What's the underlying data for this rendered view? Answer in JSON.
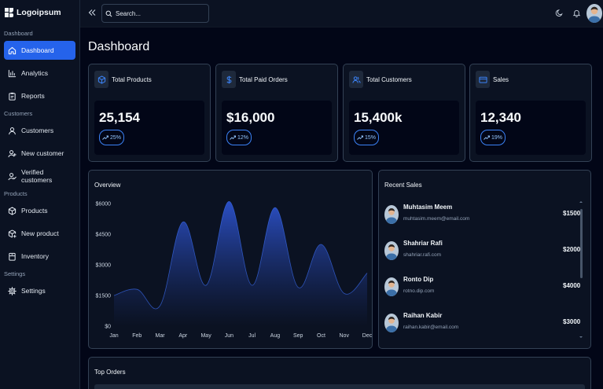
{
  "brand": {
    "name": "Logoipsum"
  },
  "sidebar": {
    "sections": [
      {
        "label": "Dashboard",
        "items": [
          {
            "label": "Dashboard",
            "icon": "home-icon",
            "active": true
          },
          {
            "label": "Analytics",
            "icon": "chart-icon"
          },
          {
            "label": "Reports",
            "icon": "clipboard-icon"
          }
        ]
      },
      {
        "label": "Customers",
        "items": [
          {
            "label": "Customers",
            "icon": "user-icon"
          },
          {
            "label": "New customer",
            "icon": "user-plus-icon"
          },
          {
            "label": "Verified customers",
            "icon": "user-check-icon"
          }
        ]
      },
      {
        "label": "Products",
        "items": [
          {
            "label": "Products",
            "icon": "package-icon"
          },
          {
            "label": "New product",
            "icon": "package-plus-icon"
          },
          {
            "label": "Inventory",
            "icon": "inventory-icon"
          }
        ]
      },
      {
        "label": "Settings",
        "items": [
          {
            "label": "Settings",
            "icon": "gear-icon"
          }
        ]
      }
    ]
  },
  "topbar": {
    "search_placeholder": "Search...",
    "icons": [
      "collapse-icon",
      "search-icon",
      "moon-icon",
      "bell-icon",
      "avatar"
    ]
  },
  "page": {
    "title": "Dashboard"
  },
  "stats": [
    {
      "title": "Total Products",
      "value": "25,154",
      "change": "25%",
      "icon": "box-icon"
    },
    {
      "title": "Total Paid Orders",
      "value": "$16,000",
      "change": "12%",
      "icon": "dollar-icon"
    },
    {
      "title": "Total Customers",
      "value": "15,400k",
      "change": "15%",
      "icon": "users-icon"
    },
    {
      "title": "Sales",
      "value": "12,340",
      "change": "19%",
      "icon": "card-icon"
    }
  ],
  "overview": {
    "title": "Overview",
    "chart_data": {
      "type": "area",
      "categories": [
        "Jan",
        "Feb",
        "Mar",
        "Apr",
        "May",
        "Jun",
        "Jul",
        "Aug",
        "Sep",
        "Oct",
        "Nov",
        "Dec"
      ],
      "values": [
        1500,
        1800,
        1000,
        5100,
        2000,
        6100,
        2000,
        5800,
        1900,
        4000,
        1600,
        2600
      ],
      "ylim": [
        0,
        6000
      ],
      "yticks": [
        "$6000",
        "$4500",
        "$3000",
        "$1500",
        "$0"
      ],
      "grid": false,
      "colors": {
        "fill_top": "#2b4fc4",
        "fill_bottom": "#0b1222",
        "line": "#3b6cf0"
      }
    }
  },
  "recent_sales": {
    "title": "Recent Sales",
    "items": [
      {
        "name": "Muhtasim Meem",
        "email": "muhtasim.meem@email.com",
        "amount": "$1500"
      },
      {
        "name": "Shahriar Rafi",
        "email": "shahriar.rafi.com",
        "amount": "$2000"
      },
      {
        "name": "Ronto Dip",
        "email": "rotno.dip.com",
        "amount": "$4000"
      },
      {
        "name": "Raihan Kabir",
        "email": "raihan.kabir@email.com",
        "amount": "$3000"
      }
    ]
  },
  "top_orders": {
    "title": "Top Orders"
  },
  "colors": {
    "accent": "#2563eb",
    "background": "#020617",
    "panel": "#0b1222",
    "border": "#334155"
  }
}
